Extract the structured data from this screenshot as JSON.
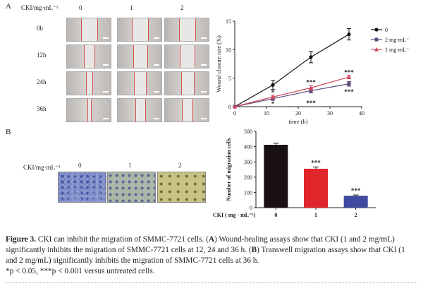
{
  "panel_a": {
    "letter": "A",
    "header_label": "CKI/mg·mL⁻¹",
    "columns": [
      "0",
      "1",
      "2"
    ],
    "rows": [
      "0h",
      "12h",
      "24h",
      "36h"
    ]
  },
  "panel_b": {
    "letter": "B",
    "row_label": "CKI/mg·mL⁻¹",
    "columns": [
      "0",
      "1",
      "2"
    ]
  },
  "chart_data": [
    {
      "type": "line",
      "ylabel": "Wound closure rate (%)",
      "xlabel": "time (h)",
      "x": [
        0,
        12,
        24,
        36
      ],
      "xlim": [
        0,
        40
      ],
      "ylim": [
        0,
        15
      ],
      "xticks": [
        "0",
        "10",
        "20",
        "30",
        "40"
      ],
      "yticks": [
        "0",
        "5",
        "10",
        "15"
      ],
      "legend_placement": "top-right",
      "series": [
        {
          "name": "0",
          "color": "#111111",
          "values": [
            0,
            3.8,
            8.7,
            12.7
          ],
          "errors": [
            0,
            0.8,
            1.0,
            1.0
          ]
        },
        {
          "name": "2 mg·mL⁻¹",
          "color": "#5b4a7a",
          "values": [
            0,
            1.4,
            2.8,
            4.0
          ],
          "errors": [
            0,
            0.3,
            0.4,
            0.4
          ]
        },
        {
          "name": "1 mg·mL⁻¹",
          "color": "#d0455a",
          "values": [
            0,
            1.7,
            3.3,
            5.2
          ],
          "errors": [
            0,
            0.3,
            0.4,
            0.3
          ]
        }
      ],
      "annotations": [
        {
          "text": "*",
          "x": 12,
          "y": 2.5
        },
        {
          "text": "*",
          "x": 12,
          "y": 0.5
        },
        {
          "text": "***",
          "x": 24,
          "y": 4.3
        },
        {
          "text": "***",
          "x": 24,
          "y": 0.6
        },
        {
          "text": "***",
          "x": 36,
          "y": 6.0
        },
        {
          "text": "***",
          "x": 36,
          "y": 2.6
        }
      ]
    },
    {
      "type": "bar",
      "ylabel": "Number of migration cells",
      "xlabel": "CKI ( mg · mL⁻¹)",
      "categories": [
        "0",
        "1",
        "2"
      ],
      "values": [
        412,
        255,
        78
      ],
      "errors": [
        10,
        12,
        5
      ],
      "colors": [
        "#1a1212",
        "#e0262b",
        "#3f4aa0"
      ],
      "ylim": [
        0,
        500
      ],
      "yticks": [
        "0",
        "100",
        "200",
        "300",
        "400",
        "500"
      ],
      "annotations": [
        "",
        "***",
        "***"
      ]
    }
  ],
  "caption": {
    "figure_label": "Figure 3.",
    "text_1": " CKI can inhibit the migration of SMMC-7721 cells. (",
    "a": "A",
    "text_2": ") Wound-healing assays show that CKI (1 and 2 mg/mL) significantly inhibits the migration of SMMC-7721 cells at 12, 24 and 36 h. (",
    "b": "B",
    "text_3": ") Transwell migration assays show that CKI (1 and 2 mg/mL) significantly inhibits the migration of SMMC-7721 cells at 36 h.",
    "footnote": "*p < 0.05, ***p < 0.001 versus untreated cells."
  }
}
